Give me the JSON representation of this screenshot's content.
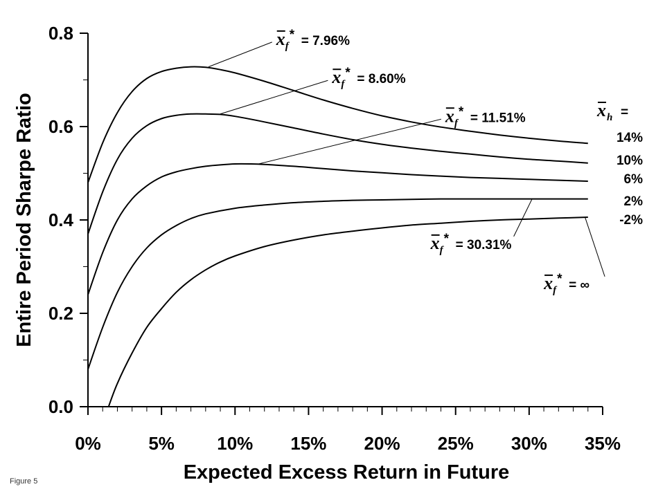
{
  "figure": {
    "caption": "Figure 5"
  },
  "chart_data": {
    "type": "line",
    "title": "",
    "xlabel": "Expected Excess Return in Future",
    "ylabel": "Entire Period Sharpe Ratio",
    "xlim": [
      0,
      35
    ],
    "ylim": [
      0,
      0.8
    ],
    "x_ticks": [
      0,
      5,
      10,
      15,
      20,
      25,
      30,
      35
    ],
    "x_tick_labels": [
      "0%",
      "5%",
      "10%",
      "15%",
      "20%",
      "25%",
      "30%",
      "35%"
    ],
    "y_ticks": [
      0,
      0.2,
      0.4,
      0.6,
      0.8
    ],
    "y_tick_labels": [
      "0.0",
      "0.2",
      "0.4",
      "0.6",
      "0.8"
    ],
    "x_minor_step": 1,
    "y_minor_step": 0.1,
    "grid": false,
    "legend_title": {
      "symbol": "x",
      "subscript": "h",
      "suffix": "="
    },
    "series": [
      {
        "name": "14%",
        "x": [
          0,
          1,
          2,
          3,
          4,
          5,
          6,
          7,
          8,
          9,
          10,
          12,
          14,
          16,
          18,
          20,
          22,
          24,
          26,
          28,
          30,
          32,
          34
        ],
        "values": [
          0.48,
          0.565,
          0.63,
          0.675,
          0.703,
          0.718,
          0.725,
          0.728,
          0.727,
          0.722,
          0.715,
          0.697,
          0.677,
          0.657,
          0.639,
          0.623,
          0.61,
          0.599,
          0.59,
          0.582,
          0.575,
          0.569,
          0.564
        ]
      },
      {
        "name": "10%",
        "x": [
          0,
          1,
          2,
          3,
          4,
          5,
          6,
          7,
          8,
          9,
          10,
          12,
          14,
          16,
          18,
          20,
          22,
          24,
          26,
          28,
          30,
          32,
          34
        ],
        "values": [
          0.37,
          0.46,
          0.53,
          0.575,
          0.602,
          0.617,
          0.624,
          0.627,
          0.627,
          0.626,
          0.622,
          0.61,
          0.597,
          0.584,
          0.572,
          0.562,
          0.554,
          0.547,
          0.541,
          0.535,
          0.53,
          0.526,
          0.522
        ]
      },
      {
        "name": "6%",
        "x": [
          0,
          1,
          2,
          3,
          4,
          5,
          6,
          7,
          8,
          9,
          10,
          11,
          12,
          14,
          16,
          18,
          20,
          22,
          24,
          26,
          28,
          30,
          32,
          34
        ],
        "values": [
          0.24,
          0.33,
          0.4,
          0.445,
          0.473,
          0.492,
          0.503,
          0.51,
          0.515,
          0.518,
          0.52,
          0.52,
          0.519,
          0.515,
          0.51,
          0.505,
          0.501,
          0.497,
          0.494,
          0.491,
          0.489,
          0.487,
          0.485,
          0.483
        ]
      },
      {
        "name": "2%",
        "x": [
          0,
          1,
          2,
          3,
          4,
          5,
          6,
          7,
          8,
          10,
          12,
          14,
          16,
          18,
          20,
          22,
          24,
          26,
          28,
          30,
          32,
          34
        ],
        "values": [
          0.08,
          0.17,
          0.245,
          0.3,
          0.34,
          0.368,
          0.388,
          0.403,
          0.413,
          0.425,
          0.432,
          0.437,
          0.44,
          0.442,
          0.443,
          0.444,
          0.445,
          0.445,
          0.445,
          0.445,
          0.445,
          0.445
        ]
      },
      {
        "name": "-2%",
        "x": [
          1.4,
          2,
          3,
          4,
          5,
          6,
          7,
          8,
          9,
          10,
          12,
          14,
          16,
          18,
          20,
          22,
          24,
          26,
          28,
          30,
          32,
          34
        ],
        "values": [
          0.0,
          0.05,
          0.115,
          0.17,
          0.21,
          0.245,
          0.272,
          0.293,
          0.31,
          0.323,
          0.343,
          0.357,
          0.368,
          0.376,
          0.383,
          0.389,
          0.393,
          0.397,
          0.4,
          0.402,
          0.404,
          0.406
        ]
      }
    ],
    "annotations": [
      {
        "value": "7.96%",
        "at": [
          8.2,
          0.728
        ],
        "text": [
          12.8,
          0.775
        ]
      },
      {
        "value": "8.60%",
        "at": [
          9.0,
          0.627
        ],
        "text": [
          16.6,
          0.693
        ]
      },
      {
        "value": "11.51%",
        "at": [
          11.6,
          0.52
        ],
        "text": [
          24.3,
          0.61
        ]
      },
      {
        "value": "30.31%",
        "at": [
          30.2,
          0.445
        ],
        "text": [
          23.3,
          0.338
        ]
      },
      {
        "value": "∞",
        "at": [
          33.8,
          0.406
        ],
        "text": [
          31.0,
          0.252
        ]
      }
    ]
  }
}
